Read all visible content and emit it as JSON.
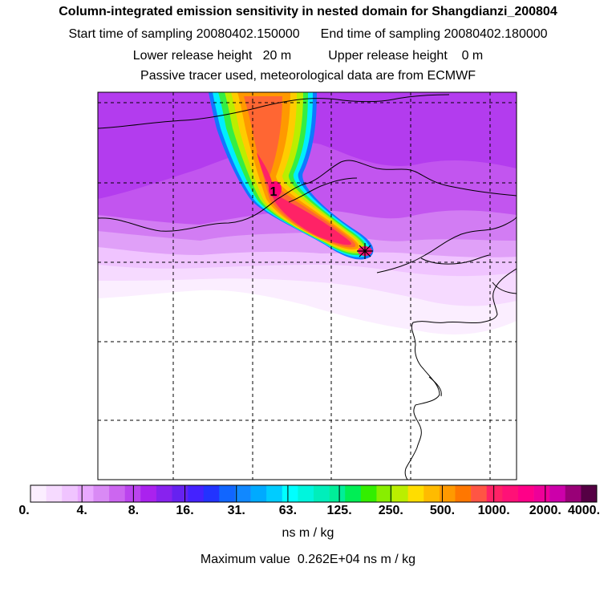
{
  "header": {
    "title": "Column-integrated emission sensitivity in nested domain for Shangdianzi_200804",
    "start_label": "Start time of sampling",
    "start_value": "20080402.150000",
    "end_label": "End time of sampling",
    "end_value": "20080402.180000",
    "lower_label": "Lower release height",
    "lower_value": "20 m",
    "upper_label": "Upper release height",
    "upper_value": "0 m",
    "note": "Passive tracer used, meteorological data are from ECMWF"
  },
  "map": {
    "release_marker_label": "1",
    "receptor_marker": "+"
  },
  "colorbar": {
    "tick_labels": [
      "0.",
      "4.",
      "8.",
      "16.",
      "31.",
      "63.",
      "125.",
      "250.",
      "500.",
      "1000.",
      "2000.",
      "4000."
    ],
    "unit": "ns m / kg",
    "colors": [
      "#fbeeff",
      "#f6daff",
      "#f0c4ff",
      "#e9a8ff",
      "#d98af5",
      "#cc66f0",
      "#bb44ee",
      "#aa22ee",
      "#8822ee",
      "#6622f0",
      "#4422ff",
      "#2233ff",
      "#1166ff",
      "#1188ff",
      "#00aaff",
      "#00ccff",
      "#00ffff",
      "#00f5dd",
      "#00eebb",
      "#00ee99",
      "#00ee55",
      "#33ee00",
      "#88ee00",
      "#bbee00",
      "#ffdd00",
      "#ffbb00",
      "#ff9900",
      "#ff7700",
      "#ff5544",
      "#ff2266",
      "#ff1177",
      "#ff0088",
      "#ee0099",
      "#cc00aa",
      "#990077",
      "#550044"
    ]
  },
  "footer": {
    "max_prefix": "Maximum value",
    "max_value": "0.262E+04",
    "max_unit": "ns m / kg"
  }
}
